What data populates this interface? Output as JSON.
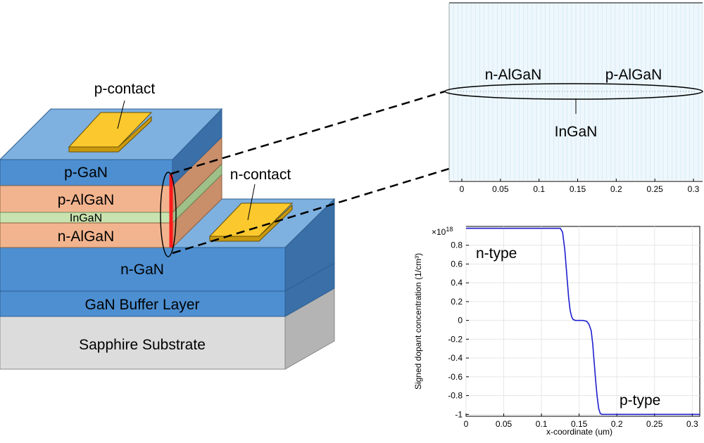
{
  "device": {
    "layers": {
      "p_gan": "p-GaN",
      "p_algan": "p-AlGaN",
      "ingan": "InGaN",
      "n_algan": "n-AlGaN",
      "n_gan": "n-GaN",
      "buffer": "GaN Buffer Layer",
      "substrate": "Sapphire Substrate"
    },
    "p_contact": "p-contact",
    "n_contact": "n-contact"
  },
  "colors": {
    "gan_front": "#4d8fd1",
    "gan_top": "#7eb0e0",
    "gan_side": "#3a6fa8",
    "algan_front": "#f2b48e",
    "algan_side": "#c98e6a",
    "ingan_front": "#c8e3b0",
    "ingan_side": "#9fc089",
    "substrate_front": "#dcdcdc",
    "substrate_side": "#b4b4b4",
    "contact": "#fbc92e",
    "contact_edge": "#c99a10",
    "highlight": "#ff1a1a",
    "mesh": "#d7ecf7",
    "curve": "#1f1fd0"
  },
  "mesh_view": {
    "labels": {
      "n_algan": "n-AlGaN",
      "p_algan": "p-AlGaN",
      "ingan": "InGaN"
    },
    "x_ticks": [
      "0",
      "0.05",
      "0.1",
      "0.15",
      "0.2",
      "0.25",
      "0.3"
    ]
  },
  "chart_data": {
    "type": "line",
    "xlabel": "x-coordinate (um)",
    "ylabel": "Signed dopant concentration (1/cm³)",
    "y_multiplier": "×10",
    "y_multiplier_exp": "18",
    "xlim": [
      0,
      0.31
    ],
    "ylim": [
      -1.02,
      1.0
    ],
    "grid": true,
    "x_ticks": [
      "0",
      "0.05",
      "0.1",
      "0.15",
      "0.2",
      "0.25",
      "0.3"
    ],
    "y_ticks": [
      "0.8",
      "0.6",
      "0.4",
      "0.2",
      "0",
      "-0.2",
      "-0.4",
      "-0.6",
      "-0.8",
      "-1"
    ],
    "annotations": {
      "n_type": "n-type",
      "p_type": "p-type"
    },
    "series": [
      {
        "x": [
          0,
          0.02,
          0.05,
          0.1,
          0.125,
          0.128,
          0.131,
          0.134,
          0.136,
          0.138,
          0.14,
          0.142,
          0.145,
          0.15,
          0.155,
          0.16,
          0.163,
          0.166,
          0.168,
          0.17,
          0.172,
          0.174,
          0.176,
          0.178,
          0.18,
          0.2,
          0.25,
          0.3,
          0.31
        ],
        "y": [
          0.98,
          0.98,
          0.98,
          0.98,
          0.98,
          0.94,
          0.75,
          0.45,
          0.25,
          0.11,
          0.04,
          0.01,
          0.0,
          0.0,
          0.0,
          -0.01,
          -0.04,
          -0.11,
          -0.25,
          -0.45,
          -0.65,
          -0.82,
          -0.94,
          -0.99,
          -1.0,
          -1.0,
          -1.0,
          -1.0,
          -1.0
        ]
      }
    ]
  }
}
